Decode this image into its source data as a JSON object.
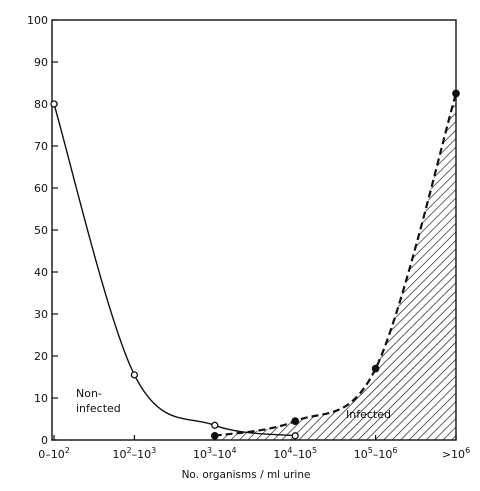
{
  "chart_data": {
    "type": "line",
    "title": "",
    "xlabel": "No. organisms / ml urine",
    "ylabel": "",
    "categories": [
      "0-10^2",
      "10^2-10^3",
      "10^3-10^4",
      "10^4-10^5",
      "10^5-10^6",
      ">10^6"
    ],
    "x_tick_labels": [
      {
        "base": "0–10",
        "sup": "2",
        "sep": "",
        "base2": "",
        "sup2": ""
      },
      {
        "base": "10",
        "sup": "2",
        "sep": "–10",
        "base2": "",
        "sup2": "3"
      },
      {
        "base": "10",
        "sup": "3",
        "sep": "–10",
        "base2": "",
        "sup2": "4"
      },
      {
        "base": "10",
        "sup": "4",
        "sep": "–10",
        "base2": "",
        "sup2": "5"
      },
      {
        "base": "10",
        "sup": "5",
        "sep": "–10",
        "base2": "",
        "sup2": "6"
      },
      {
        "base": ">10",
        "sup": "6",
        "sep": "",
        "base2": "",
        "sup2": ""
      }
    ],
    "ylim": [
      0,
      100
    ],
    "y_ticks": [
      0,
      10,
      20,
      30,
      40,
      50,
      60,
      70,
      80,
      90,
      100
    ],
    "grid": false,
    "series": [
      {
        "name": "Non-infected",
        "label_lines": [
          "Non-",
          "infected"
        ],
        "line_style": "solid",
        "marker": "open-circle",
        "points": [
          {
            "x": 0,
            "y": 80
          },
          {
            "x": 1,
            "y": 15.5
          },
          {
            "x": 2,
            "y": 3.5
          },
          {
            "x": 3,
            "y": 1
          }
        ]
      },
      {
        "name": "Infected",
        "label_lines": [
          "Infected"
        ],
        "line_style": "dashed",
        "marker": "filled-circle",
        "fill": "hatched",
        "points": [
          {
            "x": 2,
            "y": 1
          },
          {
            "x": 3,
            "y": 4.5
          },
          {
            "x": 4,
            "y": 17
          },
          {
            "x": 5,
            "y": 82.5
          }
        ]
      }
    ],
    "colors": {
      "ink": "#111111",
      "background": "#ffffff"
    }
  }
}
